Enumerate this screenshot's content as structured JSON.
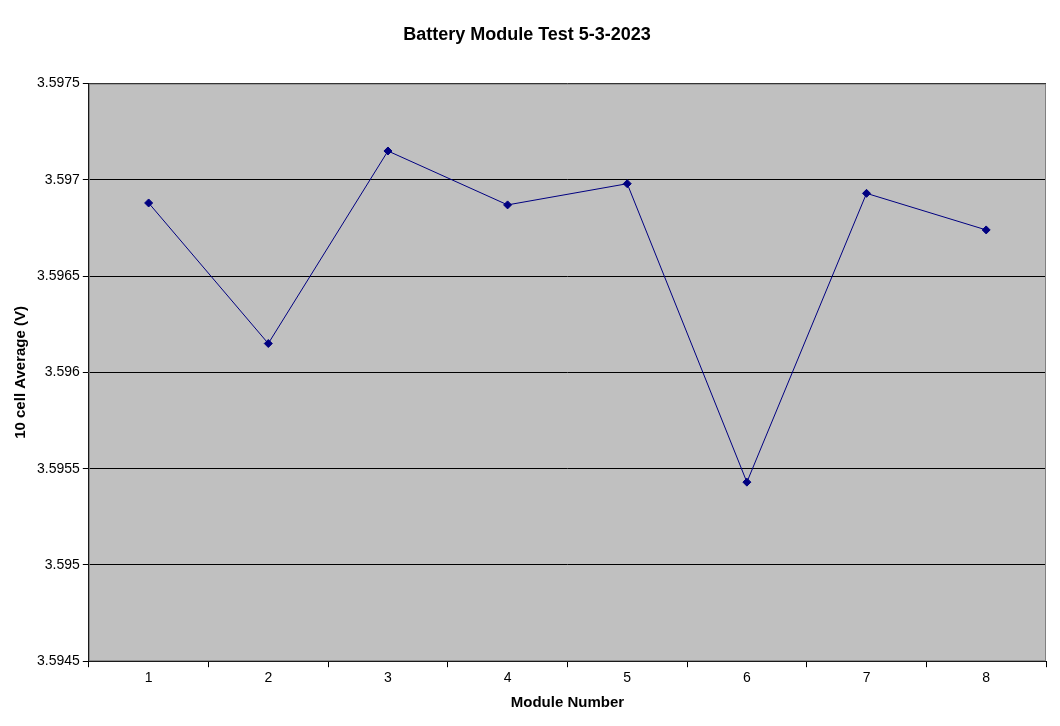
{
  "chart_data": {
    "type": "line",
    "title": "Battery Module Test 5-3-2023",
    "x_label": "Module Number",
    "y_label": "10 cell Average (V)",
    "categories": [
      "1",
      "2",
      "3",
      "4",
      "5",
      "6",
      "7",
      "8"
    ],
    "values": [
      3.59688,
      3.59615,
      3.59715,
      3.59687,
      3.59698,
      3.59543,
      3.59693,
      3.59674
    ],
    "color": "#000080",
    "marker": "diamond",
    "line_style": "solid",
    "ylim": [
      3.5945,
      3.5975
    ],
    "yticks": [
      3.5945,
      3.595,
      3.5955,
      3.596,
      3.5965,
      3.597,
      3.5975
    ],
    "grid": true
  }
}
